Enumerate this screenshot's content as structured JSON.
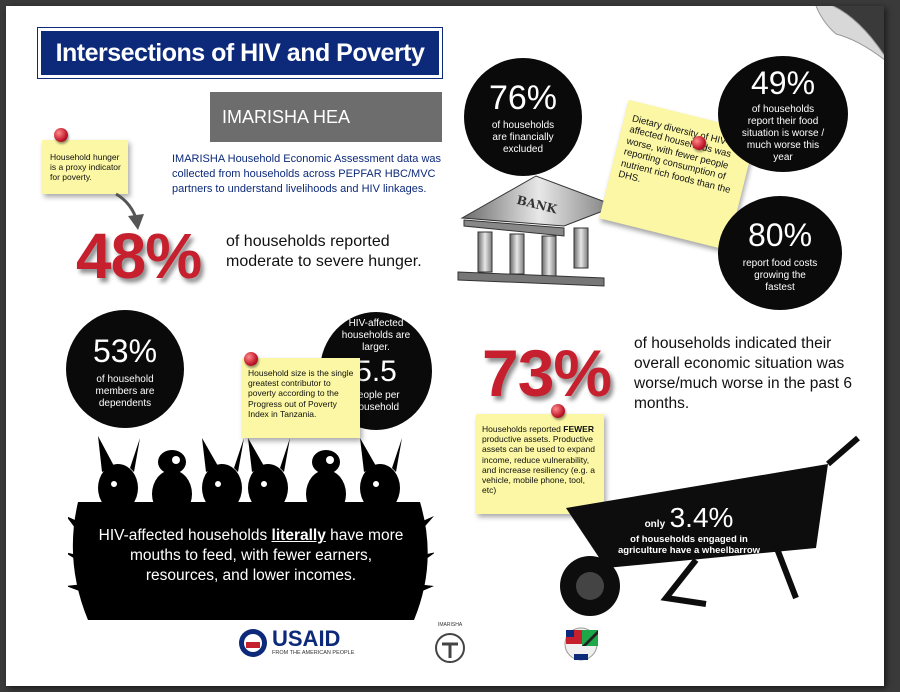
{
  "header": {
    "title": "Intersections of HIV and Poverty",
    "subtitle": "IMARISHA HEA"
  },
  "intro": "IMARISHA Household Economic Assessment data was collected from households across PEPFAR HBC/MVC partners to understand livelihoods and HIV linkages.",
  "notes": {
    "hunger": "Household hunger is a proxy indicator for poverty.",
    "dietary": "Dietary diversity of HIV-affected households was worse, with fewer people reporting consumption of nutrient rich foods than the DHS.",
    "household_size": "Household size is the single greatest contributor to poverty according to the Progress out of Poverty Index in Tanzania.",
    "assets_pre": "Households reported ",
    "assets_bold": "FEWER",
    "assets_post": " productive assets. Productive assets can be used to expand income, reduce vulnerability, and increase resiliency (e.g. a vehicle, mobile phone, tool, etc)"
  },
  "stats": {
    "hunger": {
      "value": "48%",
      "text": "of households reported moderate to severe hunger."
    },
    "financial": {
      "value": "76%",
      "text": "of households are financially excluded"
    },
    "food_situation": {
      "value": "49%",
      "text": "of households report their food situation is worse / much worse this year"
    },
    "food_costs": {
      "value": "80%",
      "text": "report food costs growing the fastest"
    },
    "dependents": {
      "value": "53%",
      "text": "of household members are dependents"
    },
    "hh_size": {
      "pre": "HIV-affected households are larger.",
      "value": "5.5",
      "text": "people per household"
    },
    "economic": {
      "value": "73%",
      "text": "of households indicated their overall economic situation was worse/much worse in the past 6 months."
    },
    "wheelbarrow": {
      "pre": "only",
      "value": "3.4%",
      "text": "of households engaged in agriculture have a wheelbarrow"
    }
  },
  "bank_label": "BANK",
  "mouths": {
    "pre": "HIV-affected households ",
    "emph": "literally",
    "post": " have more mouths to feed, with fewer earners, resources, and lower incomes."
  },
  "logos": {
    "usaid": "USAID",
    "usaid_tag": "FROM THE AMERICAN PEOPLE",
    "imarisha": "IMARISHA"
  },
  "colors": {
    "navy": "#0d2a7a",
    "red": "#c6202f",
    "note": "#fbf7a4",
    "gray": "#6d6d6d"
  }
}
